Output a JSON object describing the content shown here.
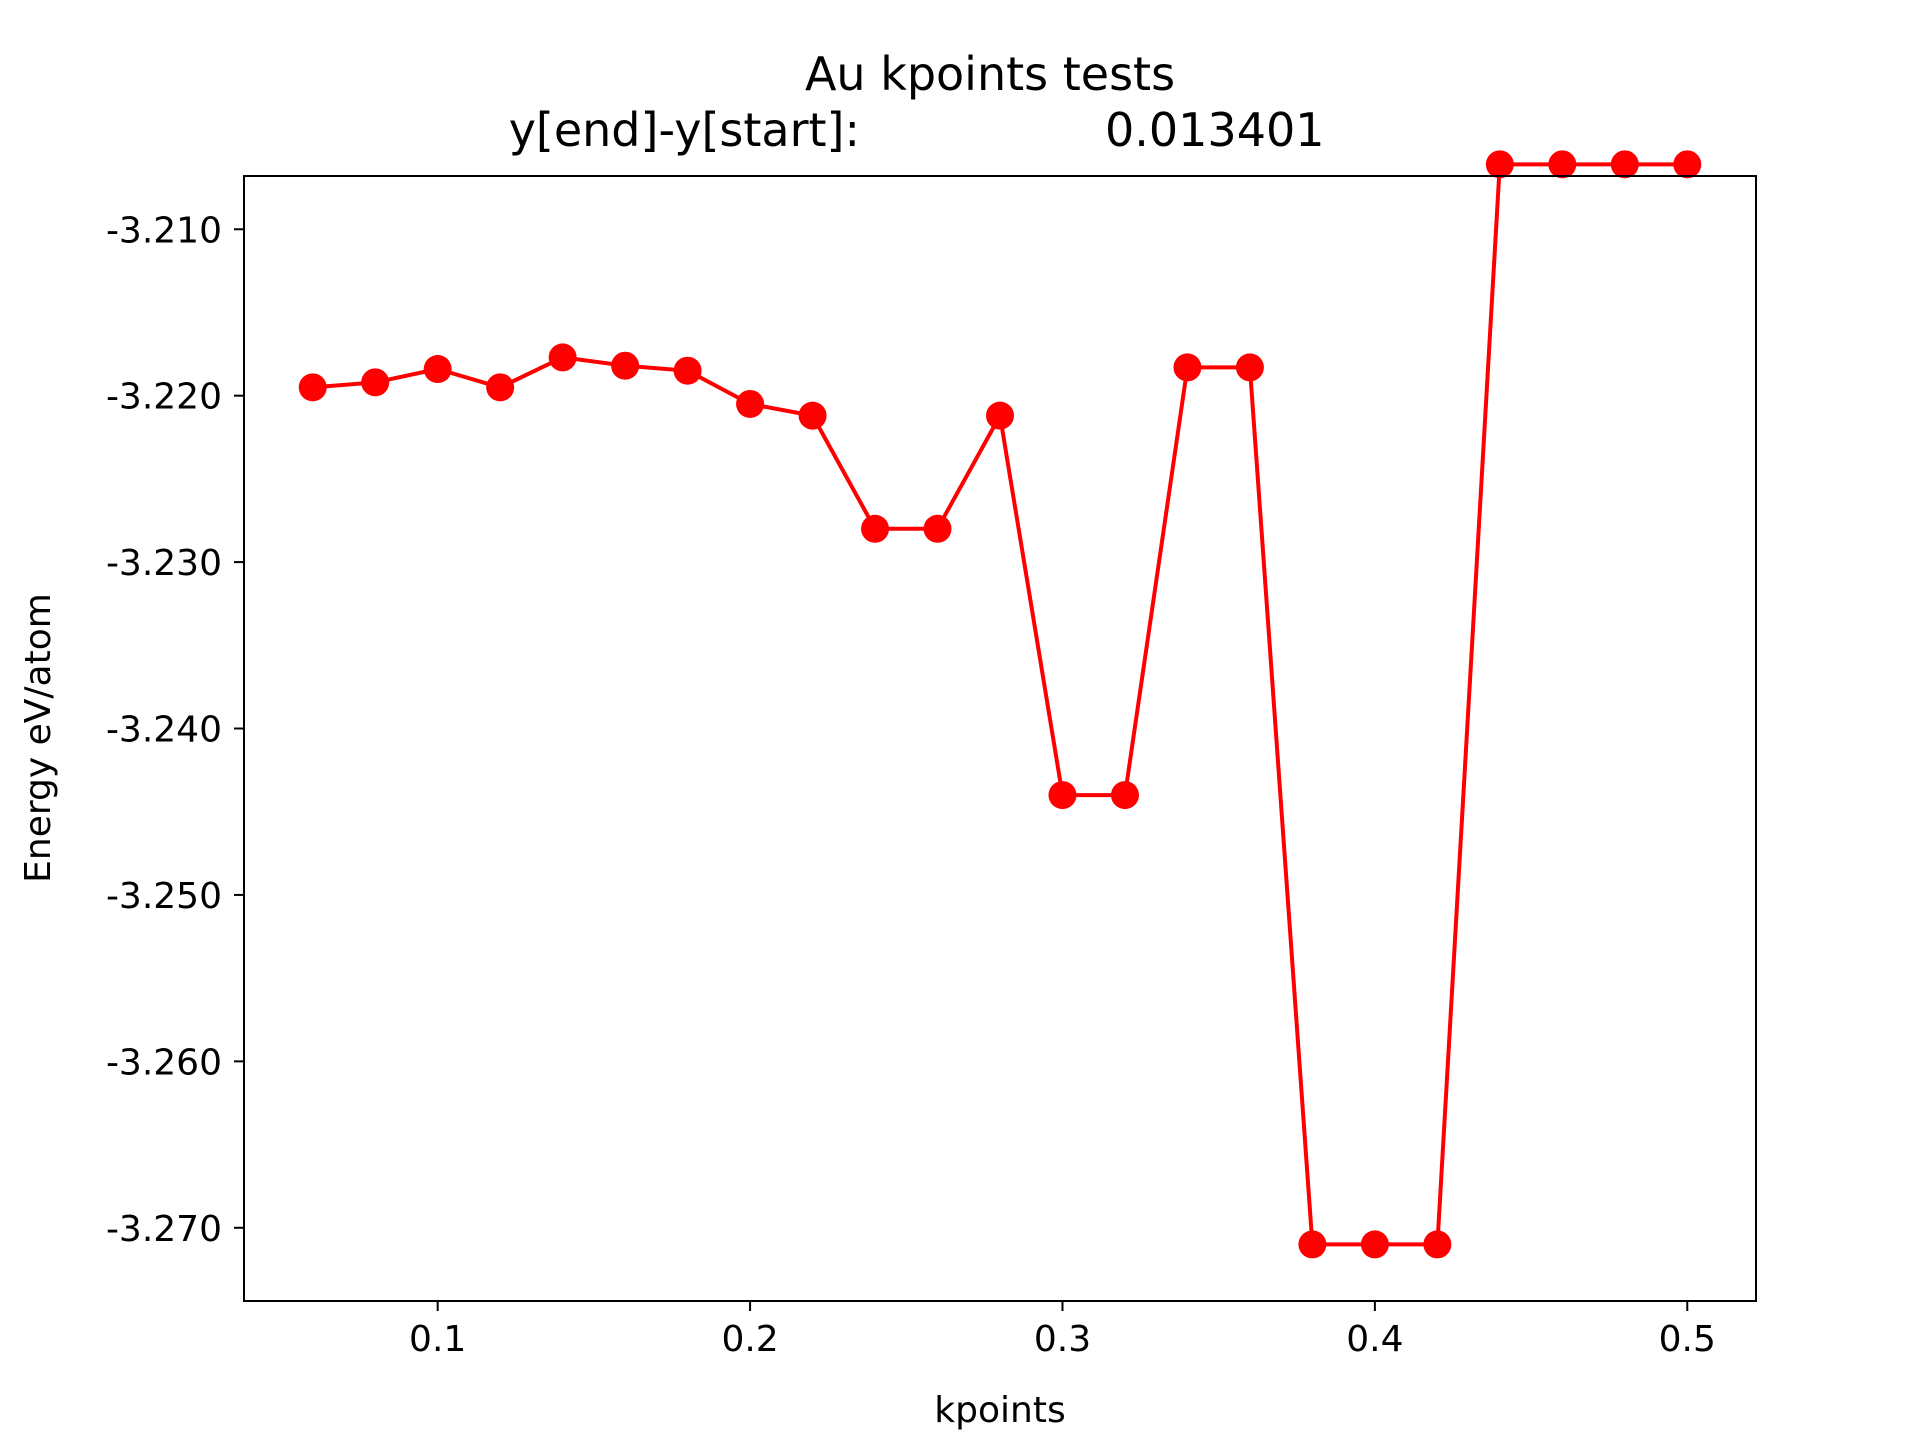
{
  "chart_data": {
    "type": "line",
    "title": "Au kpoints tests",
    "subtitle_label": "y[end]-y[start]:",
    "subtitle_value": "0.013401",
    "xlabel": "kpoints",
    "ylabel": "Energy eV/atom",
    "xlim": [
      0.038,
      0.522
    ],
    "ylim": [
      -3.2744,
      -3.2068
    ],
    "xticks": [
      0.1,
      0.2,
      0.3,
      0.4,
      0.5
    ],
    "xtick_labels": [
      "0.1",
      "0.2",
      "0.3",
      "0.4",
      "0.5"
    ],
    "yticks": [
      -3.21,
      -3.22,
      -3.23,
      -3.24,
      -3.25,
      -3.26,
      -3.27
    ],
    "ytick_labels": [
      "-3.210",
      "-3.220",
      "-3.230",
      "-3.240",
      "-3.250",
      "-3.260",
      "-3.270"
    ],
    "grid": false,
    "series": [
      {
        "color": "#ff0000",
        "marker": "circle",
        "x": [
          0.06,
          0.08,
          0.1,
          0.12,
          0.14,
          0.16,
          0.18,
          0.2,
          0.22,
          0.24,
          0.26,
          0.28,
          0.3,
          0.32,
          0.34,
          0.36,
          0.38,
          0.4,
          0.42,
          0.44,
          0.46,
          0.48,
          0.5
        ],
        "y": [
          -3.2195,
          -3.2192,
          -3.2184,
          -3.2195,
          -3.2177,
          -3.2182,
          -3.2185,
          -3.2205,
          -3.2212,
          -3.228,
          -3.228,
          -3.2212,
          -3.244,
          -3.244,
          -3.2183,
          -3.2183,
          -3.271,
          -3.271,
          -3.271,
          -3.2061,
          -3.2061,
          -3.2061,
          -3.2061
        ]
      }
    ]
  }
}
